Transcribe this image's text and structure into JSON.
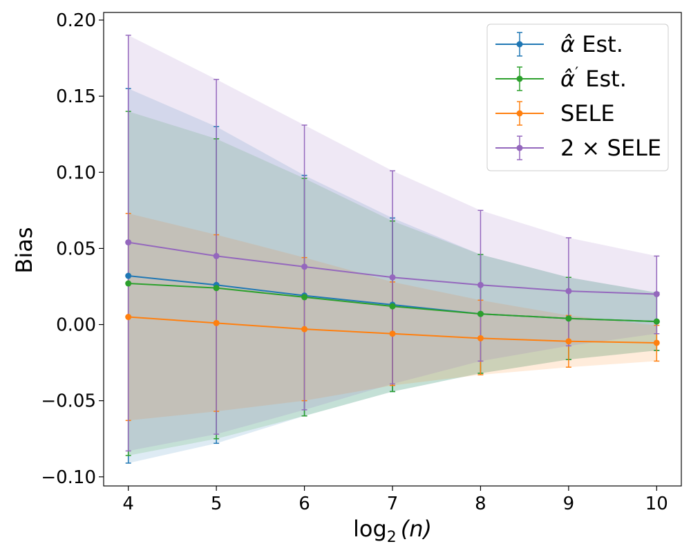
{
  "chart_data": {
    "type": "line",
    "title": "",
    "xlabel": "log",
    "xlabel_sub": "2",
    "xlabel_arg": "(n)",
    "ylabel": "Bias",
    "xlim": [
      3.72,
      10.28
    ],
    "ylim": [
      -0.106,
      0.205
    ],
    "x": [
      4,
      5,
      6,
      7,
      8,
      9,
      10
    ],
    "x_tick_labels": [
      "4",
      "5",
      "6",
      "7",
      "8",
      "9",
      "10"
    ],
    "y_ticks": [
      -0.1,
      -0.05,
      0.0,
      0.05,
      0.1,
      0.15,
      0.2
    ],
    "y_tick_labels": [
      "−0.10",
      "−0.05",
      "0.00",
      "0.05",
      "0.10",
      "0.15",
      "0.20"
    ],
    "legend_position": "top-right",
    "series": [
      {
        "name": "α̂ Est.",
        "legend_main": "α̂",
        "legend_prime": "",
        "legend_suffix": " Est.",
        "color": "#1f77b4",
        "values": [
          0.032,
          0.026,
          0.019,
          0.013,
          0.007,
          0.004,
          0.002
        ],
        "upper": [
          0.155,
          0.13,
          0.098,
          0.07,
          0.046,
          0.031,
          0.021
        ],
        "lower": [
          -0.091,
          -0.078,
          -0.06,
          -0.044,
          -0.032,
          -0.023,
          -0.017
        ]
      },
      {
        "name": "α̂′ Est.",
        "legend_main": "α̂",
        "legend_prime": "′",
        "legend_suffix": " Est.",
        "color": "#2ca02c",
        "values": [
          0.027,
          0.024,
          0.018,
          0.012,
          0.007,
          0.004,
          0.002
        ],
        "upper": [
          0.14,
          0.122,
          0.096,
          0.068,
          0.046,
          0.031,
          0.021
        ],
        "lower": [
          -0.086,
          -0.075,
          -0.06,
          -0.044,
          -0.032,
          -0.023,
          -0.017
        ]
      },
      {
        "name": "SELE",
        "legend_main": "SELE",
        "legend_prime": "",
        "legend_suffix": "",
        "color": "#ff7f0e",
        "values": [
          0.005,
          0.001,
          -0.003,
          -0.006,
          -0.009,
          -0.011,
          -0.012
        ],
        "upper": [
          0.073,
          0.059,
          0.044,
          0.028,
          0.016,
          0.006,
          -0.0005
        ],
        "lower": [
          -0.063,
          -0.057,
          -0.05,
          -0.04,
          -0.033,
          -0.028,
          -0.024
        ]
      },
      {
        "name": "2 × SELE",
        "legend_main": "2 × SELE",
        "legend_prime": "",
        "legend_suffix": "",
        "color": "#9467bd",
        "values": [
          0.054,
          0.045,
          0.038,
          0.031,
          0.026,
          0.022,
          0.02
        ],
        "upper": [
          0.19,
          0.161,
          0.131,
          0.101,
          0.075,
          0.057,
          0.045
        ],
        "lower": [
          -0.083,
          -0.072,
          -0.056,
          -0.039,
          -0.024,
          -0.014,
          -0.006
        ]
      }
    ]
  }
}
